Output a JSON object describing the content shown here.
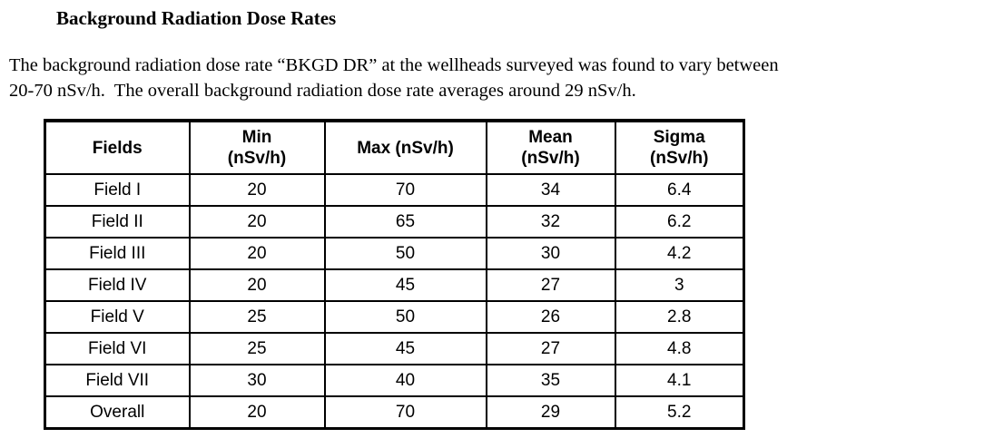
{
  "document": {
    "title": "Background Radiation Dose Rates",
    "paragraph": {
      "lines": [
        "The background radiation dose rate “BKGD DR” at the wellheads surveyed was found to vary between",
        "20-70 nSv/h.  The overall background radiation dose rate averages around 29 nSv/h."
      ]
    }
  },
  "table": {
    "columns": [
      {
        "label": "Fields",
        "sub": ""
      },
      {
        "label": "Min",
        "sub": "(nSv/h)"
      },
      {
        "label": "Max (nSv/h)",
        "sub": ""
      },
      {
        "label": "Mean",
        "sub": "(nSv/h)"
      },
      {
        "label": "Sigma",
        "sub": "(nSv/h)"
      }
    ],
    "rows": [
      {
        "field": "Field I",
        "min": "20",
        "max": "70",
        "mean": "34",
        "sigma": "6.4"
      },
      {
        "field": "Field II",
        "min": "20",
        "max": "65",
        "mean": "32",
        "sigma": "6.2"
      },
      {
        "field": "Field III",
        "min": "20",
        "max": "50",
        "mean": "30",
        "sigma": "4.2"
      },
      {
        "field": "Field IV",
        "min": "20",
        "max": "45",
        "mean": "27",
        "sigma": "3"
      },
      {
        "field": "Field V",
        "min": "25",
        "max": "50",
        "mean": "26",
        "sigma": "2.8"
      },
      {
        "field": "Field VI",
        "min": "25",
        "max": "45",
        "mean": "27",
        "sigma": "4.8"
      },
      {
        "field": "Field VII",
        "min": "30",
        "max": "40",
        "mean": "35",
        "sigma": "4.1"
      },
      {
        "field": "Overall",
        "min": "20",
        "max": "70",
        "mean": "29",
        "sigma": "5.2"
      }
    ]
  },
  "colors": {
    "text": "#000000",
    "background": "#ffffff",
    "table_border": "#000000"
  }
}
